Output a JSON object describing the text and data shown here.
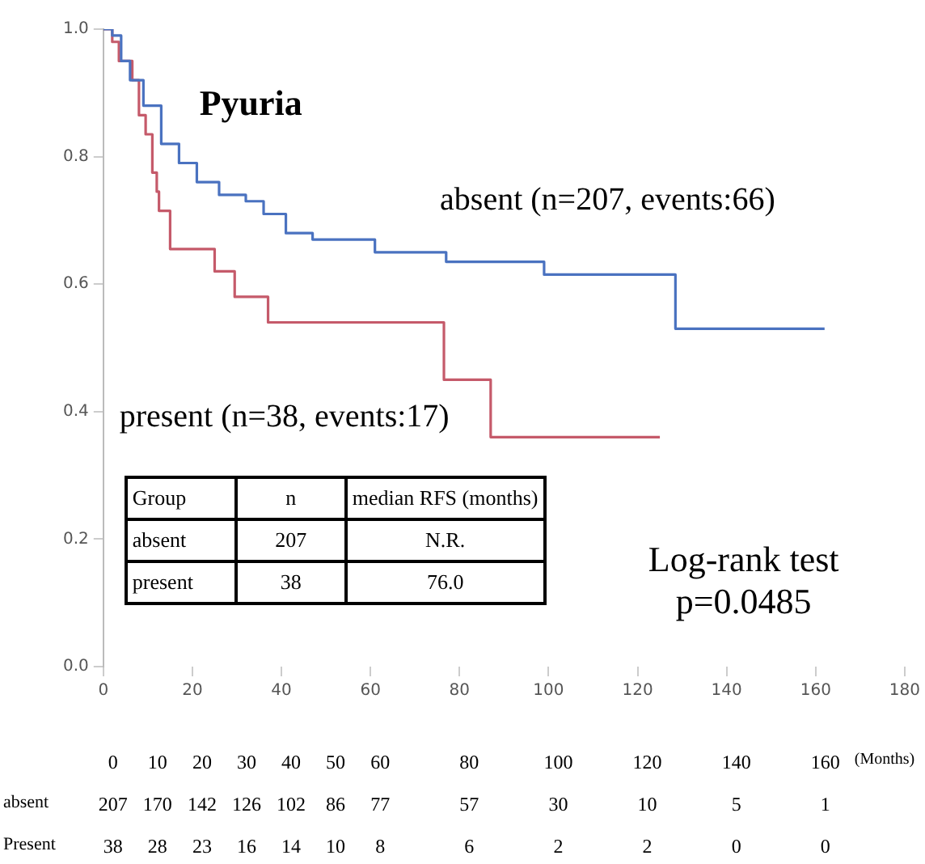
{
  "chart_data": {
    "type": "step",
    "title": "Pyuria",
    "series": [
      {
        "name": "absent (n=207, events:66)",
        "color": "#4a72c0",
        "x": [
          0,
          2,
          4,
          6,
          9,
          13,
          17,
          21,
          26,
          32,
          36,
          41,
          47,
          61,
          77,
          99,
          128.5,
          162
        ],
        "values": [
          1.0,
          0.99,
          0.95,
          0.92,
          0.88,
          0.82,
          0.79,
          0.76,
          0.74,
          0.73,
          0.71,
          0.68,
          0.67,
          0.65,
          0.635,
          0.615,
          0.53,
          0.53
        ]
      },
      {
        "name": "present (n=38, events:17)",
        "color": "#c55a6a",
        "x": [
          0,
          2,
          3.5,
          6.5,
          8,
          9.5,
          11,
          12,
          12.5,
          15,
          25,
          29.5,
          37,
          76.5,
          87,
          125
        ],
        "values": [
          1.0,
          0.98,
          0.95,
          0.92,
          0.865,
          0.835,
          0.775,
          0.745,
          0.715,
          0.655,
          0.62,
          0.58,
          0.54,
          0.45,
          0.36,
          0.36
        ]
      }
    ],
    "xlim": [
      0,
      180
    ],
    "xticks": [
      0,
      20,
      40,
      60,
      80,
      100,
      120,
      140,
      160,
      180
    ],
    "ylim": [
      0,
      1
    ],
    "yticks": [
      {
        "value": 0,
        "label": "0.0"
      },
      {
        "value": 0.2,
        "label": "0.2"
      },
      {
        "value": 0.4,
        "label": "0.4"
      },
      {
        "value": 0.6,
        "label": "0.6"
      },
      {
        "value": 0.8,
        "label": "0.8"
      },
      {
        "value": 1,
        "label": "1.0"
      }
    ],
    "grid": false,
    "legend": false,
    "marker": "none",
    "line_style": "solid",
    "annotations": [
      "Group\tn\tmedian RFS (months)",
      "absent\t207\tN.R.",
      "present\t38\t76.0",
      "Log-rank test\np=0.0485",
      "\t0\t10\t20\t30\t40\t50\t60\t80\t100\t120\t140\t160\t(Months)",
      "absent\t207\t170\t142\t126\t102\t86\t77\t57\t30\t10\t5\t1",
      "Present\t38\t28\t23\t16\t14\t10\t8\t6\t2\t2\t0\t0"
    ]
  }
}
